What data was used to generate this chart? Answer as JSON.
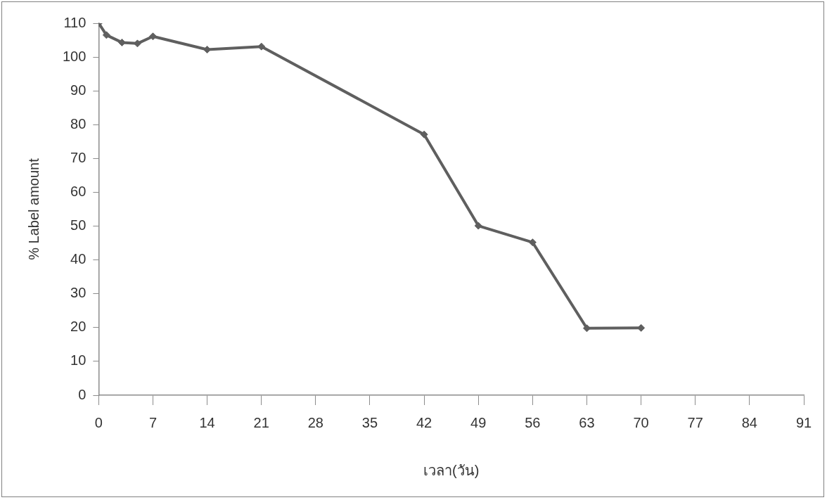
{
  "chart_data": {
    "type": "line",
    "xlabel": "เวลา(วัน)",
    "ylabel": "% Label amount",
    "xlim": [
      0,
      91
    ],
    "ylim": [
      0,
      110
    ],
    "xticks": [
      0,
      7,
      14,
      21,
      28,
      35,
      42,
      49,
      56,
      63,
      70,
      77,
      84,
      91
    ],
    "yticks": [
      0,
      10,
      20,
      30,
      40,
      50,
      60,
      70,
      80,
      90,
      100,
      110
    ],
    "grid": false,
    "legend": false,
    "marker": "diamond",
    "line_style": "solid",
    "series": [
      {
        "color": "#5f5f5f",
        "x": [
          0,
          1,
          3,
          5,
          7,
          14,
          21,
          42,
          49,
          56,
          63,
          70
        ],
        "values": [
          110,
          106.5,
          104.3,
          104,
          106.1,
          102.2,
          103.1,
          77.1,
          50.1,
          45.2,
          19.8,
          19.9
        ]
      }
    ]
  }
}
